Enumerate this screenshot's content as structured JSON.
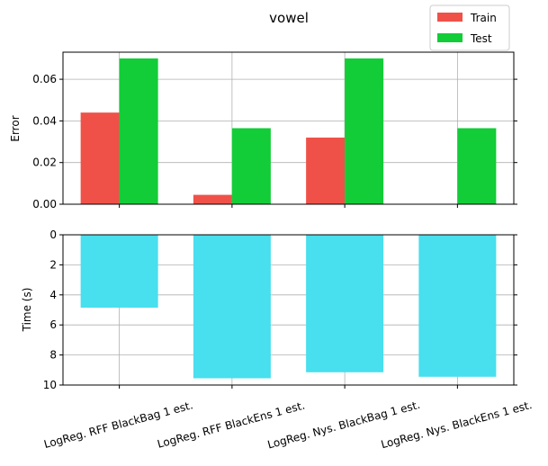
{
  "title": "vowel",
  "categories": [
    "LogReg. RFF BlackBag 1 est.",
    "LogReg. RFF BlackEns 1 est.",
    "LogReg. Nys. BlackBag 1 est.",
    "LogReg. Nys. BlackEns 1 est."
  ],
  "colors": {
    "train": "#ef5148",
    "test": "#12cd37",
    "time": "#48dfee"
  },
  "legend": {
    "position": "top-right",
    "items": [
      "Train",
      "Test"
    ]
  },
  "chart_data": [
    {
      "type": "bar",
      "title": "vowel",
      "ylabel": "Error",
      "ylim": [
        0,
        0.073
      ],
      "yticks": [
        "0.00",
        "0.02",
        "0.04",
        "0.06"
      ],
      "grid": true,
      "categories": [
        "LogReg. RFF BlackBag 1 est.",
        "LogReg. RFF BlackEns 1 est.",
        "LogReg. Nys. BlackBag 1 est.",
        "LogReg. Nys. BlackEns 1 est."
      ],
      "series": [
        {
          "name": "Train",
          "values": [
            0.044,
            0.0045,
            0.032,
            0.0
          ]
        },
        {
          "name": "Test",
          "values": [
            0.07,
            0.0365,
            0.07,
            0.0365
          ]
        }
      ]
    },
    {
      "type": "bar",
      "ylabel": "Time (s)",
      "ylim": [
        0,
        10
      ],
      "y_inverted": true,
      "yticks": [
        "0",
        "2",
        "4",
        "6",
        "8",
        "10"
      ],
      "grid": true,
      "categories": [
        "LogReg. RFF BlackBag 1 est.",
        "LogReg. RFF BlackEns 1 est.",
        "LogReg. Nys. BlackBag 1 est.",
        "LogReg. Nys. BlackEns 1 est."
      ],
      "values": [
        4.85,
        9.55,
        9.15,
        9.45
      ]
    }
  ]
}
